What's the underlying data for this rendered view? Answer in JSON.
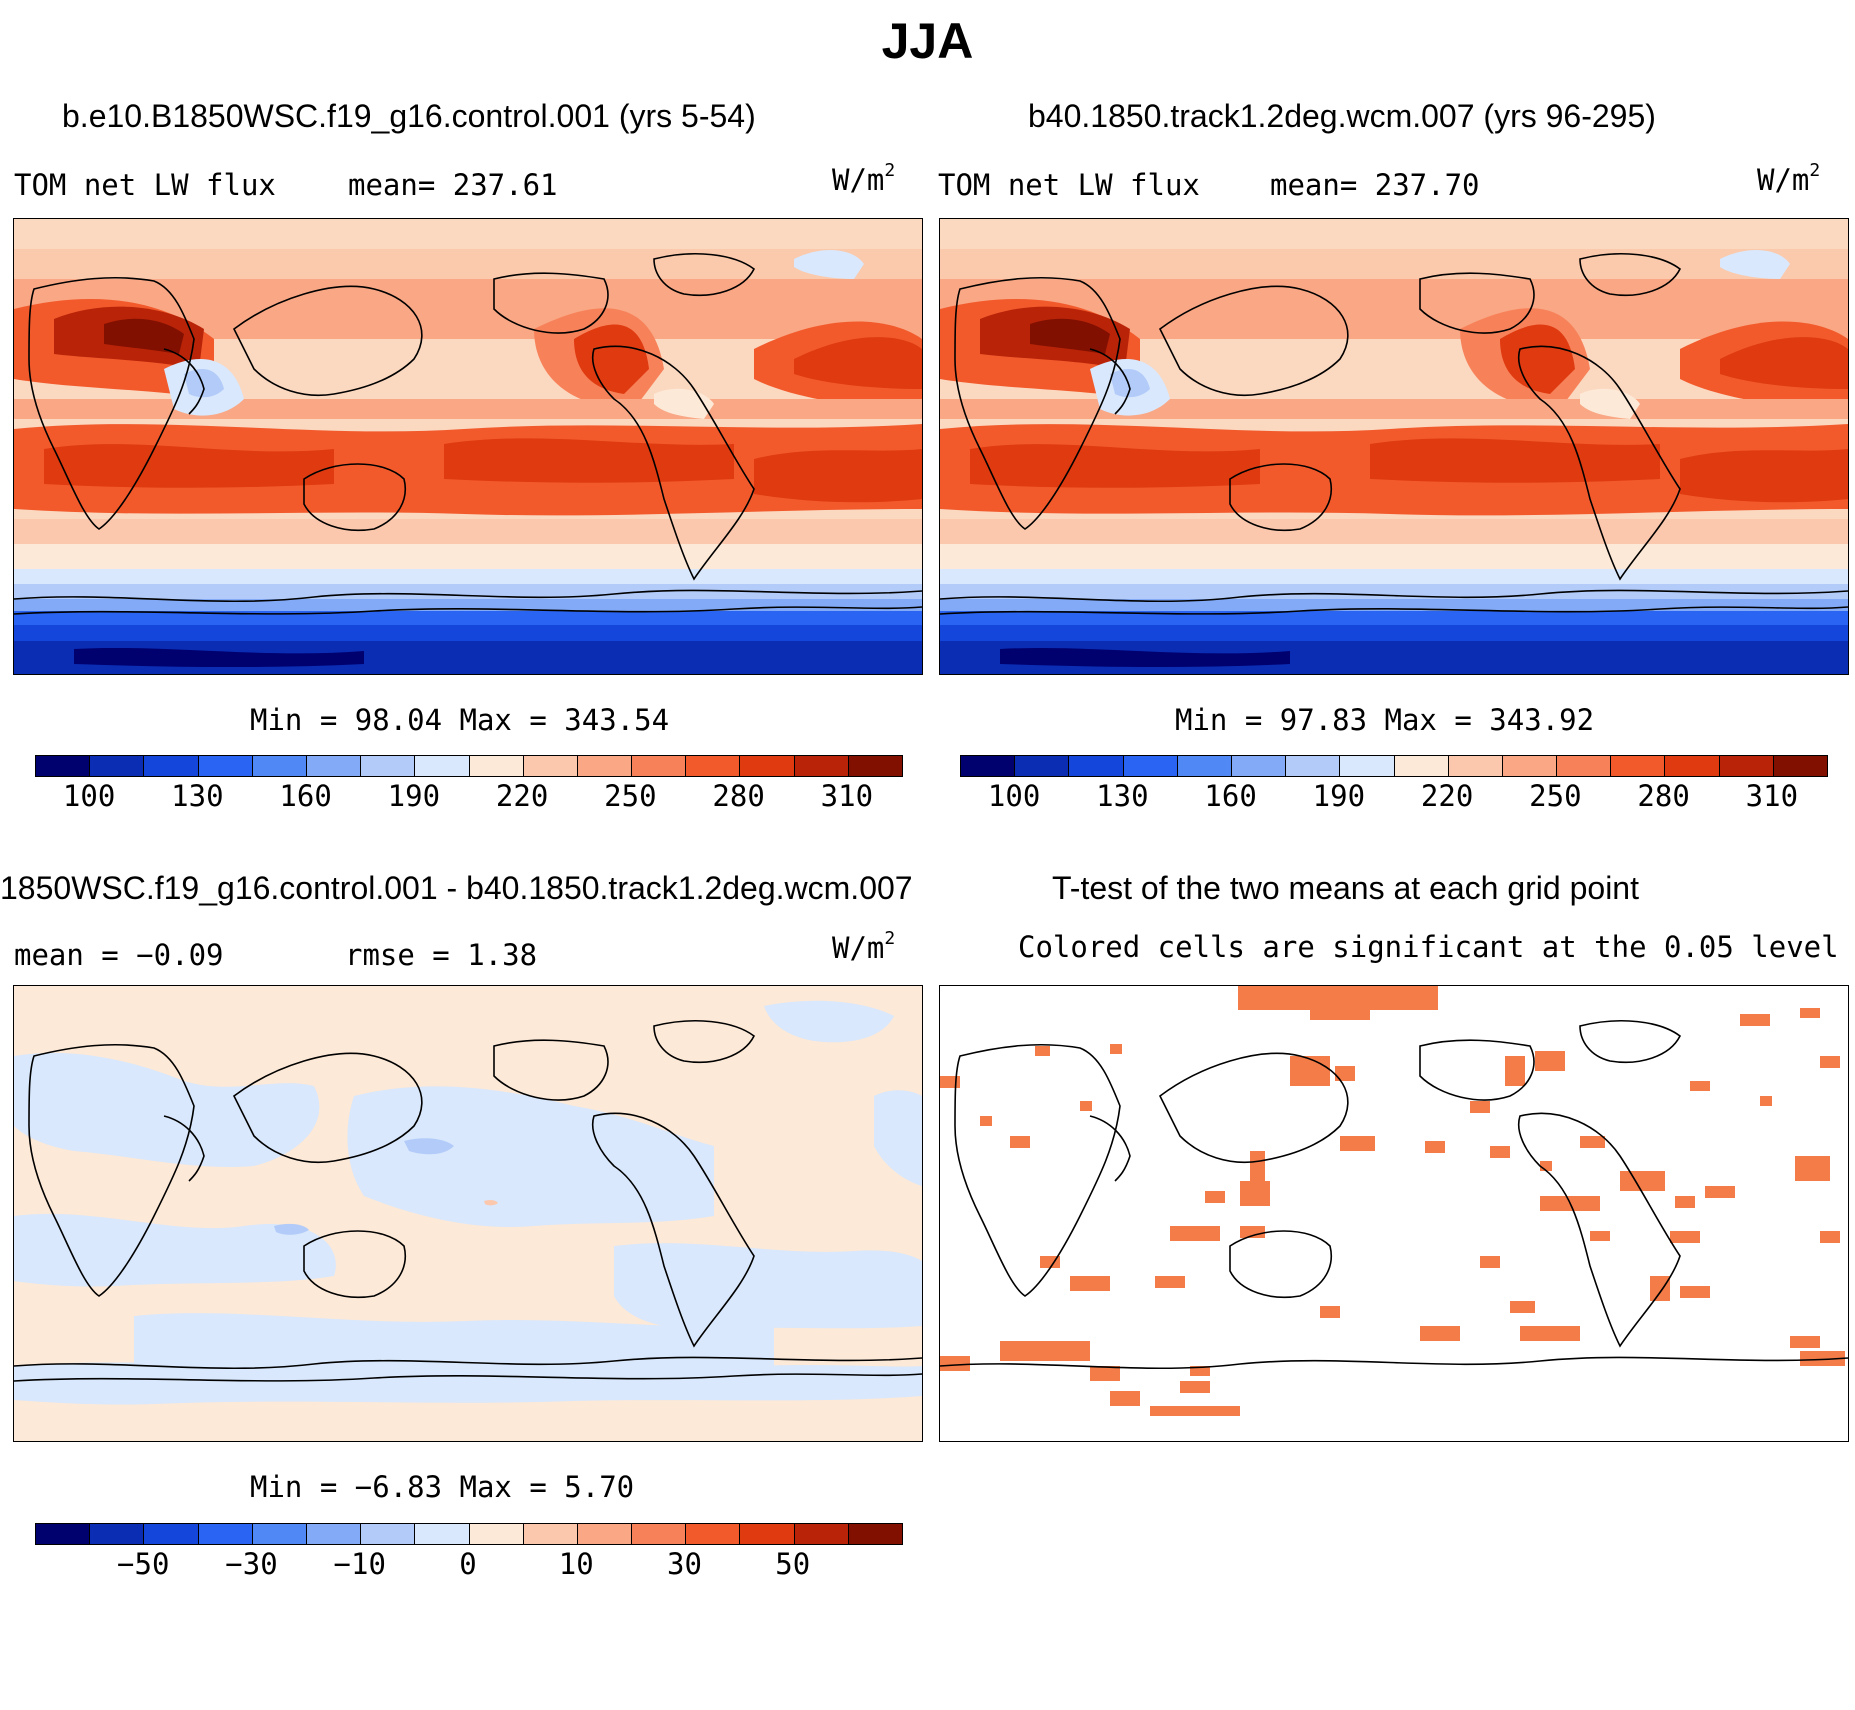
{
  "title": "JJA",
  "panels": {
    "top_left": {
      "title": "b.e10.B1850WSC.f19_g16.control.001 (yrs 5-54)",
      "left_label": "TOM net LW flux",
      "mean_label": "mean= 237.61",
      "units": "W/m",
      "units_exp": "2",
      "minmax": "Min =  98.04 Max = 343.54"
    },
    "top_right": {
      "title": "b40.1850.track1.2deg.wcm.007 (yrs 96-295)",
      "left_label": "TOM net LW flux",
      "mean_label": "mean= 237.70",
      "units": "W/m",
      "units_exp": "2",
      "minmax": "Min =  97.83 Max = 343.92"
    },
    "bottom_left": {
      "title": "1850WSC.f19_g16.control.001 - b40.1850.track1.2deg.wcm.007",
      "mean_label": "mean =  −0.09",
      "rmse_label": "rmse =   1.38",
      "units": "W/m",
      "units_exp": "2",
      "minmax": "Min =  −6.83 Max =   5.70"
    },
    "bottom_right": {
      "title": "T-test of the two means at each grid point",
      "subtitle": "Colored cells are significant at the 0.05 level"
    }
  },
  "colorbars": {
    "absolute": {
      "colors": [
        "#00006e",
        "#0a2db4",
        "#1446dc",
        "#2a64f2",
        "#5088f5",
        "#82aaf7",
        "#b2cbf9",
        "#d9e8fc",
        "#fde9d7",
        "#fcc8ad",
        "#f9a784",
        "#f7825a",
        "#f25a2c",
        "#df3a10",
        "#b92408",
        "#821000"
      ],
      "tick_labels": [
        "100",
        "130",
        "160",
        "190",
        "220",
        "250",
        "280",
        "310"
      ]
    },
    "difference": {
      "colors": [
        "#00006e",
        "#0a2db4",
        "#1446dc",
        "#2a64f2",
        "#5088f5",
        "#82aaf7",
        "#b2cbf9",
        "#d9e8fc",
        "#fde9d7",
        "#fcc8ad",
        "#f9a784",
        "#f7825a",
        "#f25a2c",
        "#df3a10",
        "#b92408",
        "#821000"
      ],
      "tick_labels": [
        "−50",
        "−30",
        "−10",
        "0",
        "10",
        "30",
        "50"
      ]
    }
  },
  "colors": {
    "significant_cell": "#f47c48",
    "diff_positive": "#fde9d7",
    "diff_negative": "#d9e8fc"
  }
}
